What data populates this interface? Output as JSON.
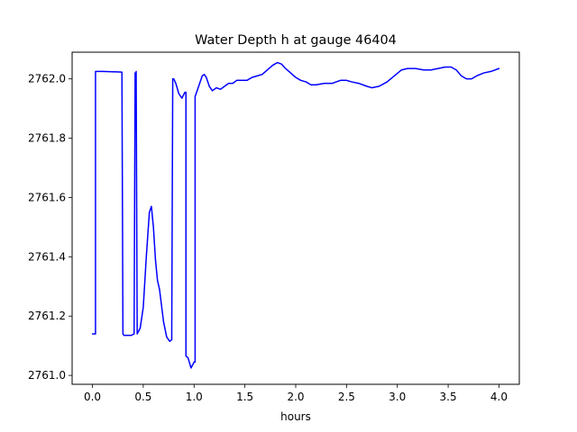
{
  "chart_data": {
    "type": "line",
    "title": "Water Depth h at gauge 46404",
    "xlabel": "hours",
    "ylabel": "",
    "xlim": [
      -0.2,
      4.2
    ],
    "ylim": [
      2760.97,
      2762.09
    ],
    "x_ticks": [
      0.0,
      0.5,
      1.0,
      1.5,
      2.0,
      2.5,
      3.0,
      3.5,
      4.0
    ],
    "x_tick_labels": [
      "0.0",
      "0.5",
      "1.0",
      "1.5",
      "2.0",
      "2.5",
      "3.0",
      "3.5",
      "4.0"
    ],
    "y_ticks": [
      2761.0,
      2761.2,
      2761.4,
      2761.6,
      2761.8,
      2762.0
    ],
    "y_tick_labels": [
      "2761.0",
      "2761.2",
      "2761.4",
      "2761.6",
      "2761.8",
      "2762.0"
    ],
    "grid": false,
    "legend": "none",
    "series": [
      {
        "color": "#0000ff",
        "x": [
          0.0,
          0.02,
          0.03,
          0.03,
          0.1,
          0.2,
          0.29,
          0.3,
          0.31,
          0.38,
          0.41,
          0.42,
          0.425,
          0.43,
          0.43,
          0.44,
          0.47,
          0.5,
          0.53,
          0.56,
          0.58,
          0.6,
          0.62,
          0.64,
          0.66,
          0.7,
          0.73,
          0.76,
          0.78,
          0.79,
          0.8,
          0.82,
          0.85,
          0.88,
          0.91,
          0.92,
          0.92,
          0.94,
          0.97,
          1.0,
          1.01,
          1.01,
          1.05,
          1.08,
          1.1,
          1.12,
          1.15,
          1.18,
          1.22,
          1.26,
          1.3,
          1.34,
          1.38,
          1.42,
          1.47,
          1.52,
          1.57,
          1.62,
          1.67,
          1.72,
          1.77,
          1.82,
          1.86,
          1.9,
          1.95,
          2.0,
          2.05,
          2.1,
          2.15,
          2.2,
          2.28,
          2.36,
          2.44,
          2.5,
          2.55,
          2.62,
          2.7,
          2.75,
          2.82,
          2.9,
          2.97,
          3.04,
          3.1,
          3.18,
          3.26,
          3.33,
          3.4,
          3.47,
          3.53,
          3.58,
          3.63,
          3.68,
          3.73,
          3.78,
          3.85,
          3.92,
          4.0
        ],
        "y": [
          2761.14,
          2761.14,
          2761.14,
          2762.025,
          2762.025,
          2762.024,
          2762.023,
          2761.14,
          2761.135,
          2761.135,
          2761.14,
          2762.02,
          2761.97,
          2761.98,
          2762.025,
          2761.14,
          2761.16,
          2761.23,
          2761.4,
          2761.55,
          2761.57,
          2761.5,
          2761.39,
          2761.32,
          2761.29,
          2761.18,
          2761.13,
          2761.115,
          2761.12,
          2762.0,
          2762.0,
          2761.985,
          2761.95,
          2761.935,
          2761.955,
          2761.955,
          2761.065,
          2761.06,
          2761.025,
          2761.045,
          2761.045,
          2761.94,
          2761.98,
          2762.01,
          2762.015,
          2762.005,
          2761.975,
          2761.96,
          2761.97,
          2761.965,
          2761.975,
          2761.985,
          2761.985,
          2761.995,
          2761.995,
          2761.995,
          2762.005,
          2762.01,
          2762.015,
          2762.03,
          2762.045,
          2762.055,
          2762.05,
          2762.035,
          2762.02,
          2762.005,
          2761.995,
          2761.99,
          2761.98,
          2761.98,
          2761.985,
          2761.985,
          2761.995,
          2761.995,
          2761.99,
          2761.985,
          2761.975,
          2761.97,
          2761.975,
          2761.99,
          2762.01,
          2762.03,
          2762.035,
          2762.035,
          2762.03,
          2762.03,
          2762.035,
          2762.04,
          2762.04,
          2762.03,
          2762.01,
          2762.0,
          2762.0,
          2762.01,
          2762.02,
          2762.025,
          2762.035
        ]
      }
    ]
  }
}
